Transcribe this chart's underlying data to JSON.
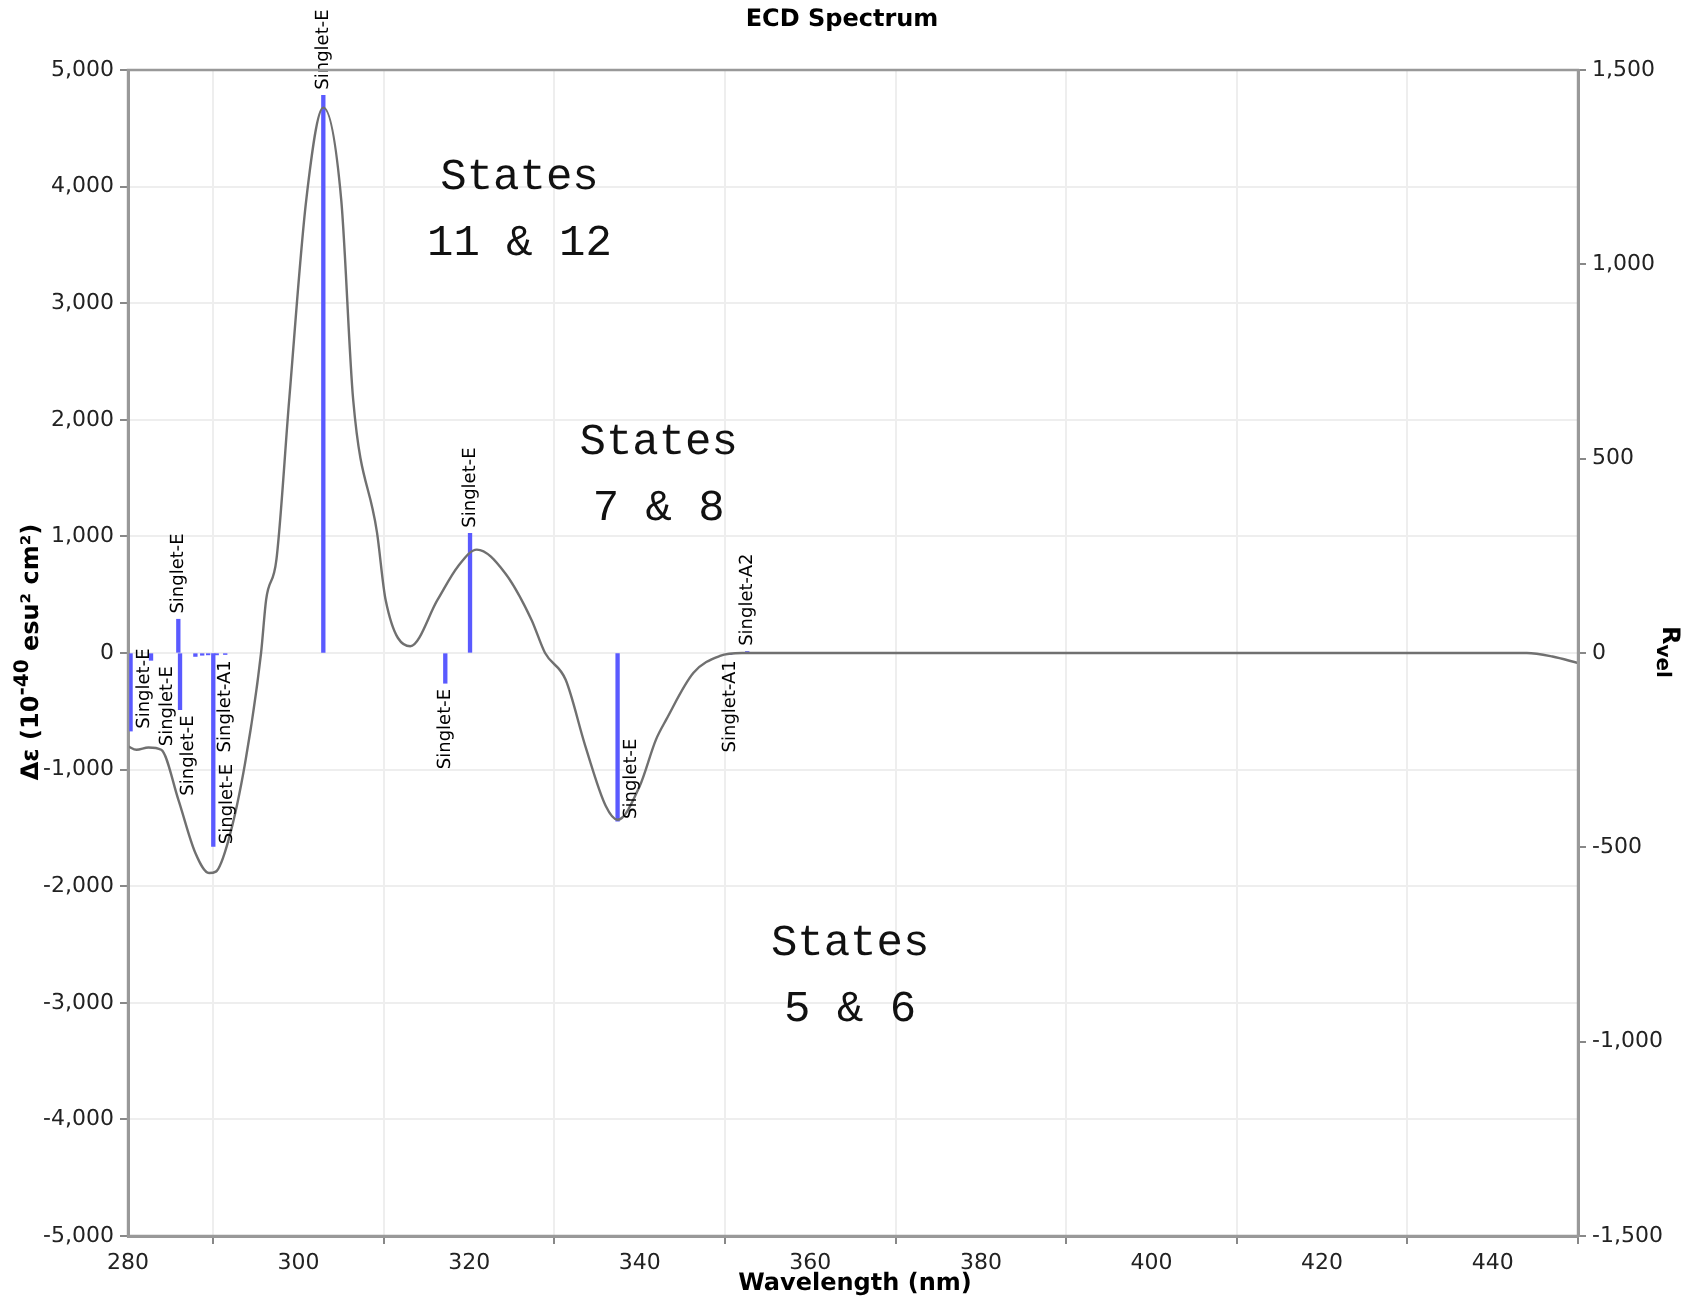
{
  "chart_data": {
    "type": "line",
    "title": "ECD Spectrum",
    "xlabel": "Wavelength (nm)",
    "ylabel": "Δε (10$^{-40}$ esu² cm²)",
    "y2label": "R$_{vel}$",
    "xlim": [
      280,
      450
    ],
    "xticks": [
      280,
      300,
      320,
      340,
      360,
      380,
      400,
      420,
      440
    ],
    "ylim": [
      -5000,
      5000
    ],
    "yticks": [
      {
        "value": -5000,
        "label": "-5,000"
      },
      {
        "value": -4000,
        "label": "-4,000"
      },
      {
        "value": -3000,
        "label": "-3,000"
      },
      {
        "value": -2000,
        "label": "-2,000"
      },
      {
        "value": -1000,
        "label": "-1,000"
      },
      0,
      {
        "value": 1000,
        "label": "1,000"
      },
      {
        "value": 2000,
        "label": "2,000"
      },
      {
        "value": 3000,
        "label": "3,000"
      },
      {
        "value": 4000,
        "label": "4,000"
      },
      {
        "value": 5000,
        "label": "5,000"
      }
    ],
    "y2lim": [
      -1500,
      1500
    ],
    "y2ticks": [
      {
        "value": -1500,
        "label": "-1,500"
      },
      {
        "value": -1000,
        "label": "-1,000"
      },
      -500,
      0,
      500,
      {
        "value": 1000,
        "label": "1,000"
      },
      {
        "value": 1500,
        "label": "1,500"
      }
    ],
    "grid": true,
    "series": [
      {
        "color": "#707070",
        "x": [
          280,
          281,
          282.4,
          283.9,
          285.9,
          287.9,
          289.5,
          290.3,
          291.8,
          293.8,
          295.6,
          296.2,
          297.4,
          298.9,
          300.9,
          302.9,
          305,
          306.4,
          309.2,
          310.2,
          313.1,
          316.3,
          318.7,
          320.9,
          324.2,
          327.3,
          328.9,
          331.3,
          333.6,
          336,
          337.4,
          340,
          341.9,
          343.1,
          346.3,
          349.4,
          352,
          360,
          380,
          400,
          420,
          440,
          444,
          447,
          450
        ],
        "values": [
          -800,
          -830,
          -810,
          -830,
          -1257,
          -1715,
          -1887,
          -1875,
          -1600,
          -914,
          0,
          460,
          800,
          2172,
          3887,
          4677,
          3887,
          2172,
          1030,
          457,
          58,
          457,
          744,
          887,
          686,
          286,
          0,
          -228,
          -794,
          -1310,
          -1430,
          -1140,
          -743,
          -572,
          -170,
          -25,
          0,
          0,
          0,
          0,
          0,
          0,
          0,
          -30,
          -86
        ]
      },
      {
        "type": "bar",
        "axis": "y2",
        "color": "#5a5aff",
        "x": [
          280.3,
          282.7,
          285.9,
          286.1,
          287.9,
          288.7,
          289.4,
          290,
          290.4,
          291.4,
          302.9,
          317.2,
          320.1,
          337.4,
          350.6,
          352.6
        ],
        "values": [
          -200,
          -18,
          86,
          -145,
          -8,
          -5,
          -4,
          -497,
          -4,
          -3,
          1434,
          -77,
          307,
          -432,
          -3,
          3
        ],
        "value_labels": [
          "Singlet-E",
          "Singlet-E",
          "Singlet-E",
          "Singlet-E",
          null,
          null,
          null,
          "Singlet-E",
          null,
          "Singlet-A1",
          "Singlet-E",
          "Singlet-E",
          "Singlet-E",
          "Singlet-E",
          "Singlet-A1",
          "Singlet-A2"
        ]
      }
    ],
    "annotations": [
      "States\n11 & 12",
      "States\n7 & 8",
      "States\n5 & 6"
    ]
  }
}
